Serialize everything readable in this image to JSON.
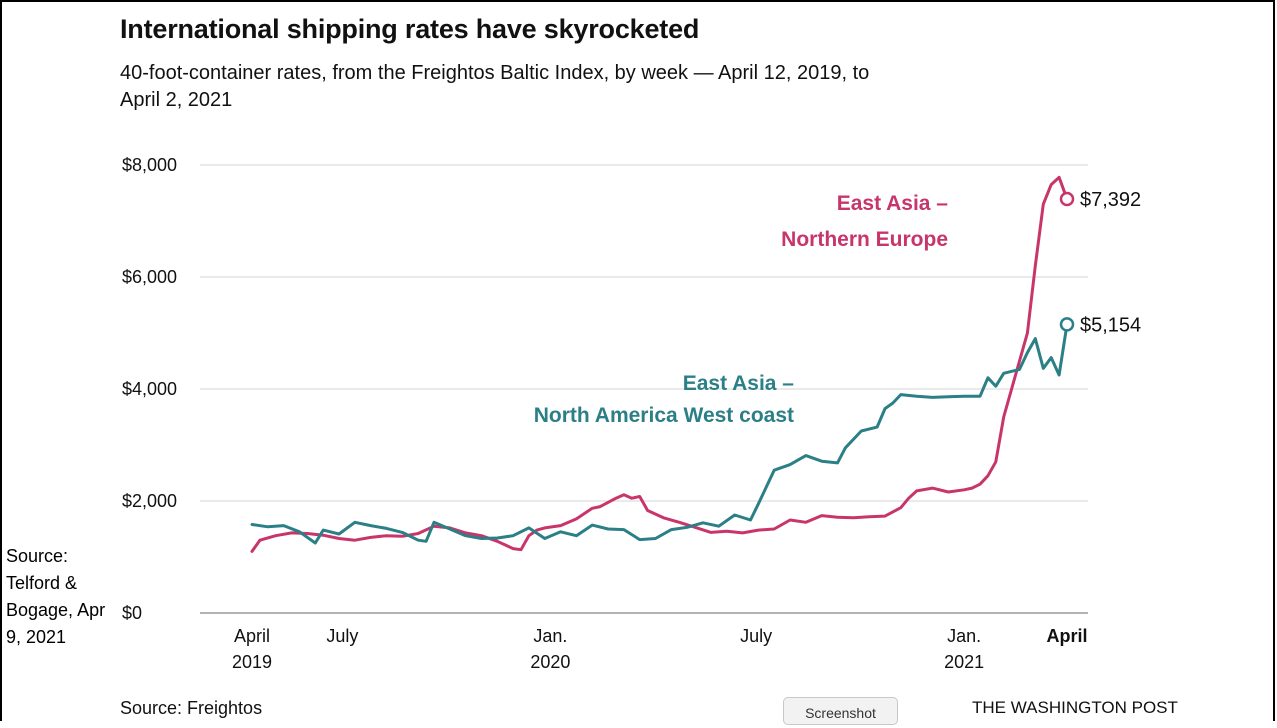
{
  "slide": {
    "side_note": "Source: Telford & Bogage, Apr 9, 2021",
    "screenshot_button": "Screenshot"
  },
  "chart_data": {
    "type": "line",
    "title": "International shipping rates have skyrocketed",
    "subtitle": "40-foot-container rates, from the Freightos Baltic Index, by week — April 12, 2019, to April 2, 2021",
    "source": "Source: Freightos",
    "credit": "THE WASHINGTON POST",
    "ylim": [
      0,
      8500
    ],
    "y_ticks": [
      {
        "value": 0,
        "label": "$0"
      },
      {
        "value": 2000,
        "label": "$2,000"
      },
      {
        "value": 4000,
        "label": "$4,000"
      },
      {
        "value": 6000,
        "label": "$6,000"
      },
      {
        "value": 8000,
        "label": "$8,000"
      }
    ],
    "x_range": [
      "2019-04-12",
      "2021-04-02"
    ],
    "x_ticks": [
      {
        "date": "2019-04-12",
        "line1": "April",
        "line2": "2019",
        "bold": false
      },
      {
        "date": "2019-07-01",
        "line1": "July",
        "line2": "",
        "bold": false
      },
      {
        "date": "2020-01-01",
        "line1": "Jan.",
        "line2": "2020",
        "bold": false
      },
      {
        "date": "2020-07-01",
        "line1": "July",
        "line2": "",
        "bold": false
      },
      {
        "date": "2021-01-01",
        "line1": "Jan.",
        "line2": "2021",
        "bold": false
      },
      {
        "date": "2021-04-02",
        "line1": "April",
        "line2": "",
        "bold": true
      }
    ],
    "grid": true,
    "series": [
      {
        "name": "East Asia – Northern Europe",
        "label_lines": [
          "East Asia –",
          "Northern Europe"
        ],
        "color": "#c8356a",
        "end_label": "$7,392",
        "points": [
          [
            "2019-04-12",
            1100
          ],
          [
            "2019-04-19",
            1300
          ],
          [
            "2019-05-03",
            1380
          ],
          [
            "2019-05-17",
            1430
          ],
          [
            "2019-05-31",
            1420
          ],
          [
            "2019-06-14",
            1390
          ],
          [
            "2019-06-28",
            1330
          ],
          [
            "2019-07-12",
            1300
          ],
          [
            "2019-07-26",
            1350
          ],
          [
            "2019-08-09",
            1380
          ],
          [
            "2019-08-23",
            1370
          ],
          [
            "2019-09-06",
            1420
          ],
          [
            "2019-09-20",
            1550
          ],
          [
            "2019-10-04",
            1520
          ],
          [
            "2019-10-18",
            1430
          ],
          [
            "2019-11-01",
            1380
          ],
          [
            "2019-11-15",
            1280
          ],
          [
            "2019-11-29",
            1150
          ],
          [
            "2019-12-06",
            1130
          ],
          [
            "2019-12-13",
            1380
          ],
          [
            "2019-12-20",
            1480
          ],
          [
            "2019-12-27",
            1520
          ],
          [
            "2020-01-10",
            1560
          ],
          [
            "2020-01-24",
            1680
          ],
          [
            "2020-02-07",
            1870
          ],
          [
            "2020-02-14",
            1900
          ],
          [
            "2020-02-28",
            2050
          ],
          [
            "2020-03-06",
            2110
          ],
          [
            "2020-03-13",
            2050
          ],
          [
            "2020-03-20",
            2080
          ],
          [
            "2020-03-27",
            1830
          ],
          [
            "2020-04-10",
            1700
          ],
          [
            "2020-04-24",
            1620
          ],
          [
            "2020-05-08",
            1530
          ],
          [
            "2020-05-22",
            1440
          ],
          [
            "2020-06-05",
            1460
          ],
          [
            "2020-06-19",
            1430
          ],
          [
            "2020-07-03",
            1480
          ],
          [
            "2020-07-17",
            1500
          ],
          [
            "2020-07-31",
            1660
          ],
          [
            "2020-08-14",
            1620
          ],
          [
            "2020-08-28",
            1740
          ],
          [
            "2020-09-11",
            1710
          ],
          [
            "2020-09-25",
            1700
          ],
          [
            "2020-10-09",
            1720
          ],
          [
            "2020-10-23",
            1730
          ],
          [
            "2020-11-06",
            1880
          ],
          [
            "2020-11-13",
            2050
          ],
          [
            "2020-11-20",
            2180
          ],
          [
            "2020-12-04",
            2230
          ],
          [
            "2020-12-18",
            2160
          ],
          [
            "2021-01-01",
            2200
          ],
          [
            "2021-01-08",
            2230
          ],
          [
            "2021-01-15",
            2300
          ],
          [
            "2021-01-22",
            2450
          ],
          [
            "2021-01-29",
            2700
          ],
          [
            "2021-02-05",
            3500
          ],
          [
            "2021-02-12",
            4000
          ],
          [
            "2021-02-19",
            4500
          ],
          [
            "2021-02-26",
            5000
          ],
          [
            "2021-03-05",
            6200
          ],
          [
            "2021-03-12",
            7300
          ],
          [
            "2021-03-19",
            7650
          ],
          [
            "2021-03-26",
            7780
          ],
          [
            "2021-04-02",
            7392
          ]
        ]
      },
      {
        "name": "East Asia – North America West coast",
        "label_lines": [
          "East Asia –",
          "North America West coast"
        ],
        "color": "#2b7f86",
        "end_label": "$5,154",
        "points": [
          [
            "2019-04-12",
            1580
          ],
          [
            "2019-04-26",
            1540
          ],
          [
            "2019-05-10",
            1560
          ],
          [
            "2019-05-24",
            1450
          ],
          [
            "2019-06-07",
            1250
          ],
          [
            "2019-06-14",
            1480
          ],
          [
            "2019-06-28",
            1410
          ],
          [
            "2019-07-12",
            1620
          ],
          [
            "2019-07-26",
            1560
          ],
          [
            "2019-08-09",
            1510
          ],
          [
            "2019-08-23",
            1440
          ],
          [
            "2019-09-06",
            1300
          ],
          [
            "2019-09-13",
            1280
          ],
          [
            "2019-09-20",
            1620
          ],
          [
            "2019-10-04",
            1500
          ],
          [
            "2019-10-18",
            1380
          ],
          [
            "2019-11-01",
            1330
          ],
          [
            "2019-11-15",
            1340
          ],
          [
            "2019-11-29",
            1380
          ],
          [
            "2019-12-13",
            1520
          ],
          [
            "2019-12-27",
            1330
          ],
          [
            "2020-01-10",
            1450
          ],
          [
            "2020-01-24",
            1380
          ],
          [
            "2020-02-07",
            1570
          ],
          [
            "2020-02-21",
            1500
          ],
          [
            "2020-03-06",
            1490
          ],
          [
            "2020-03-20",
            1310
          ],
          [
            "2020-04-03",
            1330
          ],
          [
            "2020-04-17",
            1490
          ],
          [
            "2020-05-01",
            1530
          ],
          [
            "2020-05-15",
            1610
          ],
          [
            "2020-05-29",
            1550
          ],
          [
            "2020-06-12",
            1750
          ],
          [
            "2020-06-26",
            1660
          ],
          [
            "2020-07-03",
            1950
          ],
          [
            "2020-07-17",
            2550
          ],
          [
            "2020-07-31",
            2650
          ],
          [
            "2020-08-14",
            2810
          ],
          [
            "2020-08-28",
            2710
          ],
          [
            "2020-09-11",
            2680
          ],
          [
            "2020-09-18",
            2950
          ],
          [
            "2020-10-02",
            3250
          ],
          [
            "2020-10-16",
            3320
          ],
          [
            "2020-10-23",
            3650
          ],
          [
            "2020-10-30",
            3750
          ],
          [
            "2020-11-06",
            3900
          ],
          [
            "2020-11-20",
            3870
          ],
          [
            "2020-12-04",
            3850
          ],
          [
            "2020-12-18",
            3860
          ],
          [
            "2021-01-01",
            3870
          ],
          [
            "2021-01-15",
            3870
          ],
          [
            "2021-01-22",
            4200
          ],
          [
            "2021-01-29",
            4050
          ],
          [
            "2021-02-05",
            4280
          ],
          [
            "2021-02-19",
            4350
          ],
          [
            "2021-02-26",
            4650
          ],
          [
            "2021-03-05",
            4900
          ],
          [
            "2021-03-12",
            4370
          ],
          [
            "2021-03-19",
            4560
          ],
          [
            "2021-03-26",
            4250
          ],
          [
            "2021-04-02",
            5154
          ]
        ]
      }
    ]
  }
}
